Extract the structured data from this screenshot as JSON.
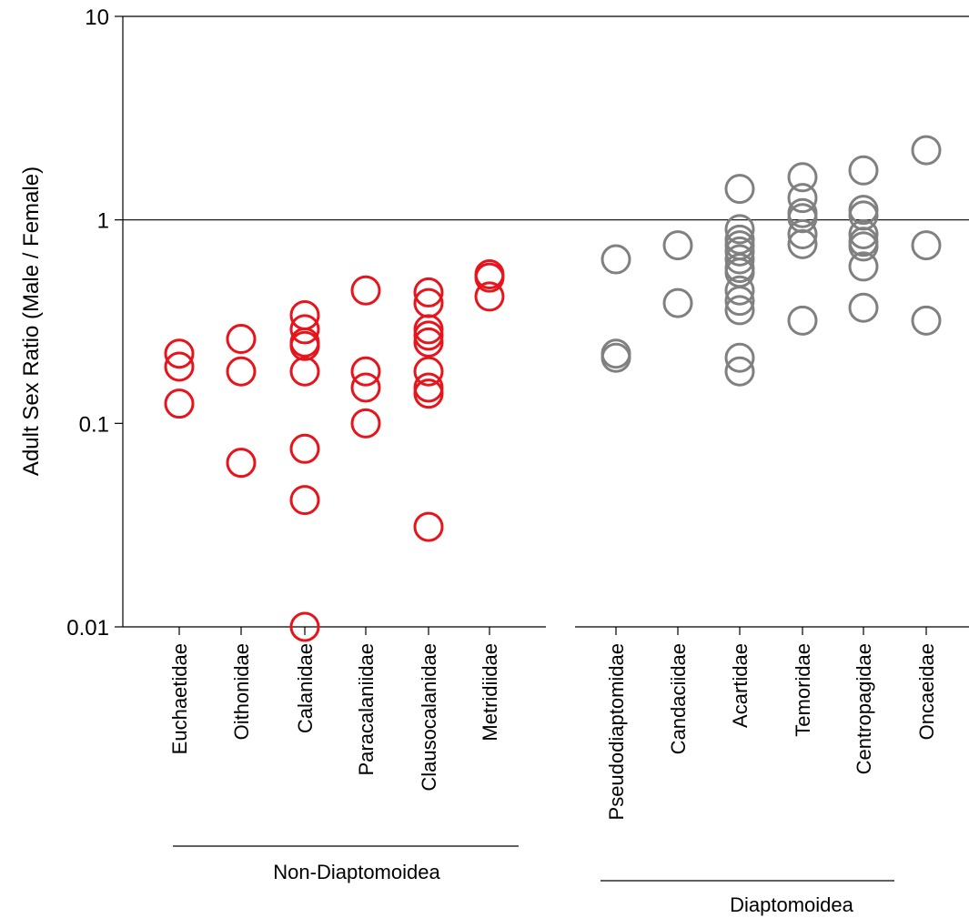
{
  "chart_data": {
    "type": "scatter",
    "title": "",
    "xlabel": "",
    "ylabel": "Adult Sex Ratio (Male / Female)",
    "y_scale": "log",
    "ylim": [
      0.01,
      10
    ],
    "y_ticks": [
      {
        "value": 0.01,
        "label": "0.01"
      },
      {
        "value": 0.1,
        "label": "0.1"
      },
      {
        "value": 1,
        "label": "1"
      },
      {
        "value": 10,
        "label": "10"
      }
    ],
    "reference_line": 1,
    "grid": false,
    "legend": "none",
    "colors": {
      "Non-Diaptomoidea": "#e8141c",
      "Diaptomoidea": "#808080"
    },
    "groups": [
      {
        "name": "Non-Diaptomoidea",
        "categories": [
          {
            "name": "Euchaetidae",
            "values": [
              0.22,
              0.19,
              0.125
            ]
          },
          {
            "name": "Oithonidae",
            "values": [
              0.26,
              0.18,
              0.064
            ]
          },
          {
            "name": "Calanidae",
            "values": [
              0.34,
              0.29,
              0.25,
              0.24,
              0.18,
              0.075,
              0.042,
              0.01
            ]
          },
          {
            "name": "Paracalaniidae",
            "values": [
              0.45,
              0.18,
              0.15,
              0.1
            ]
          },
          {
            "name": "Clausocalanidae",
            "values": [
              0.44,
              0.39,
              0.29,
              0.27,
              0.25,
              0.18,
              0.15,
              0.14,
              0.031
            ]
          },
          {
            "name": "Metridiidae",
            "values": [
              0.54,
              0.52,
              0.42
            ]
          }
        ]
      },
      {
        "name": "Diaptomoidea",
        "categories": [
          {
            "name": "Pseudodiaptomidae",
            "values": [
              0.64,
              0.22,
              0.21
            ]
          },
          {
            "name": "Candaciidae",
            "values": [
              0.75,
              0.39
            ]
          },
          {
            "name": "Acartidae",
            "values": [
              1.42,
              0.9,
              0.8,
              0.75,
              0.7,
              0.64,
              0.58,
              0.55,
              0.45,
              0.4,
              0.36,
              0.21,
              0.18
            ]
          },
          {
            "name": "Temoridae",
            "values": [
              1.62,
              1.28,
              1.08,
              1.02,
              0.85,
              0.76,
              0.32
            ]
          },
          {
            "name": "Centropagidae",
            "values": [
              1.75,
              1.12,
              1.05,
              0.85,
              0.78,
              0.74,
              0.59,
              0.37
            ]
          },
          {
            "name": "Oncaeidae",
            "values": [
              2.2,
              0.75,
              0.32
            ]
          }
        ]
      }
    ]
  }
}
